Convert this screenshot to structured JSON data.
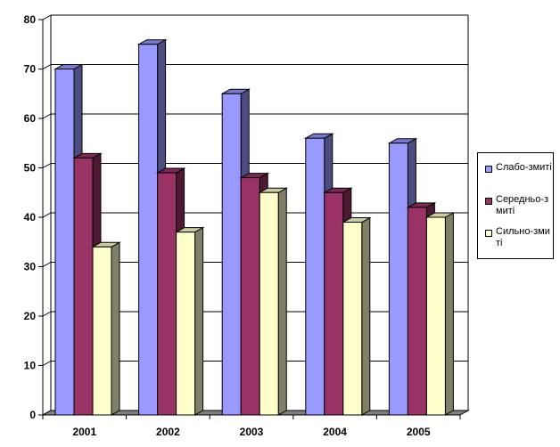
{
  "chart_data": {
    "type": "bar",
    "title": "",
    "xlabel": "",
    "ylabel": "",
    "categories": [
      "2001",
      "2002",
      "2003",
      "2004",
      "2005"
    ],
    "ylim": [
      0,
      80
    ],
    "yticks": [
      "0",
      "10",
      "20",
      "30",
      "40",
      "50",
      "60",
      "70",
      "80"
    ],
    "grid": true,
    "legend_position": "right",
    "series": [
      {
        "name": "Слабо-змиті",
        "values": [
          70,
          75,
          65,
          56,
          55
        ],
        "color": "#9999ff",
        "side_color": "#4c4c80",
        "top_color": "#7a7acc"
      },
      {
        "name": "Середньо-змиті",
        "values": [
          52,
          49,
          48,
          45,
          42
        ],
        "color": "#993366",
        "side_color": "#4d1933",
        "top_color": "#7a2952"
      },
      {
        "name": "Сильно-змиті",
        "values": [
          34,
          37,
          45,
          39,
          40
        ],
        "color": "#ffffcc",
        "side_color": "#808066",
        "top_color": "#cccca3"
      }
    ]
  }
}
